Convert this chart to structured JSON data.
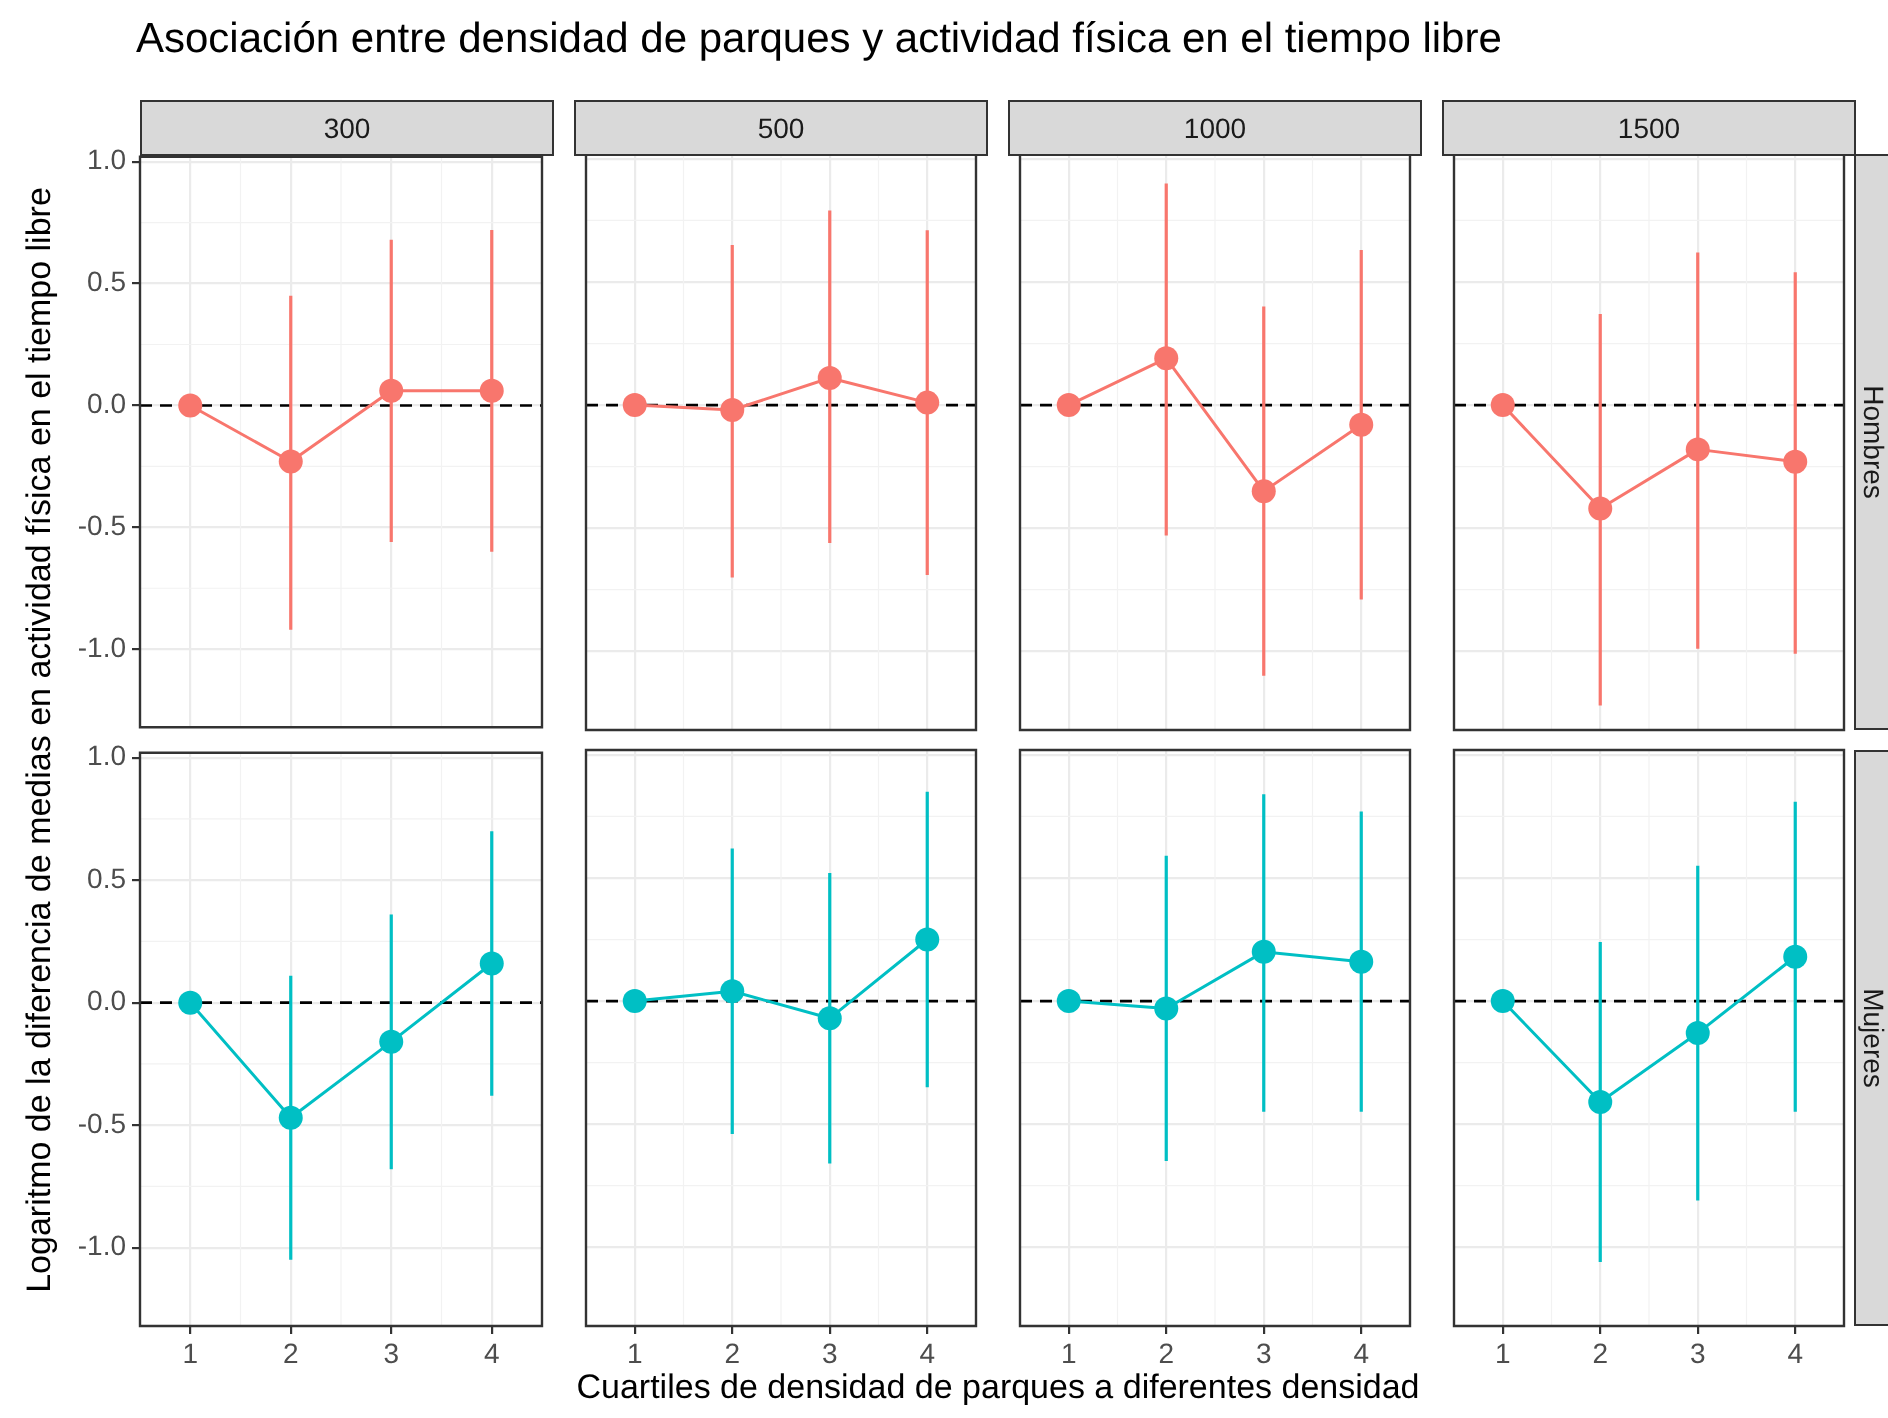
{
  "chart_data": [
    {
      "type": "line",
      "title": "Asociación entre densidad de parques y actividad física en el tiempo libre",
      "xlabel": "Cuartiles de densidad de parques a diferentes densidad",
      "ylabel": "Logaritmo  de la diferencia de medias en actividad física en el tiempo libre",
      "subtitle": "300",
      "categories": [
        "1",
        "2",
        "3",
        "4"
      ],
      "series": [
        {
          "color": "#f8766d",
          "values": [
            0,
            -0.23,
            0.06,
            0.06
          ],
          "errors": [
            null,
            [
              -0.92,
              0.45
            ],
            [
              -0.56,
              0.68
            ],
            [
              -0.6,
              0.72
            ]
          ]
        }
      ],
      "ylim": [
        -1.32,
        1.02
      ],
      "yticks": [
        {
          "value": -1,
          "label": "-1.0"
        },
        {
          "value": -0.5,
          "label": "-0.5"
        },
        {
          "value": 0,
          "label": "0.0"
        },
        {
          "value": 0.5,
          "label": "0.5"
        },
        {
          "value": 1,
          "label": "1.0"
        }
      ],
      "ref_lines": [
        {
          "axis": "y",
          "value": 0,
          "color": "#000000",
          "line_style": "dashed"
        }
      ],
      "grid": true,
      "marker": "circle",
      "tick_labels": "y"
    },
    {
      "type": "line",
      "subtitle": "500",
      "categories": [
        "1",
        "2",
        "3",
        "4"
      ],
      "series": [
        {
          "color": "#f8766d",
          "values": [
            0,
            -0.02,
            0.11,
            0.01
          ],
          "errors": [
            null,
            [
              -0.7,
              0.65
            ],
            [
              -0.56,
              0.79
            ],
            [
              -0.69,
              0.71
            ]
          ]
        }
      ],
      "ylim": [
        -1.32,
        1.02
      ],
      "ref_lines": [
        {
          "axis": "y",
          "value": 0,
          "color": "#000000",
          "line_style": "dashed"
        }
      ],
      "grid": true,
      "marker": "circle",
      "tick_labels": false
    },
    {
      "type": "line",
      "subtitle": "1000",
      "categories": [
        "1",
        "2",
        "3",
        "4"
      ],
      "series": [
        {
          "color": "#f8766d",
          "values": [
            0,
            0.19,
            -0.35,
            -0.08
          ],
          "errors": [
            null,
            [
              -0.53,
              0.9
            ],
            [
              -1.1,
              0.4
            ],
            [
              -0.79,
              0.63
            ]
          ]
        }
      ],
      "ylim": [
        -1.32,
        1.02
      ],
      "ref_lines": [
        {
          "axis": "y",
          "value": 0,
          "color": "#000000",
          "line_style": "dashed"
        }
      ],
      "grid": true,
      "marker": "circle",
      "tick_labels": false
    },
    {
      "type": "line",
      "subtitle": "1500",
      "y2label": "Hombres",
      "categories": [
        "1",
        "2",
        "3",
        "4"
      ],
      "series": [
        {
          "color": "#f8766d",
          "values": [
            0,
            -0.42,
            -0.18,
            -0.23
          ],
          "errors": [
            null,
            [
              -1.22,
              0.37
            ],
            [
              -0.99,
              0.62
            ],
            [
              -1.01,
              0.54
            ]
          ]
        }
      ],
      "ylim": [
        -1.32,
        1.02
      ],
      "ref_lines": [
        {
          "axis": "y",
          "value": 0,
          "color": "#000000",
          "line_style": "dashed"
        }
      ],
      "grid": true,
      "marker": "circle",
      "tick_labels": false
    },
    {
      "type": "line",
      "categories": [
        "1",
        "2",
        "3",
        "4"
      ],
      "series": [
        {
          "color": "#00bfc4",
          "values": [
            0,
            -0.47,
            -0.16,
            0.16
          ],
          "errors": [
            null,
            [
              -1.05,
              0.11
            ],
            [
              -0.68,
              0.36
            ],
            [
              -0.38,
              0.7
            ]
          ]
        }
      ],
      "ylim": [
        -1.32,
        1.02
      ],
      "yticks": [
        {
          "value": -1,
          "label": "-1.0"
        },
        {
          "value": -0.5,
          "label": "-0.5"
        },
        {
          "value": 0,
          "label": "0.0"
        },
        {
          "value": 0.5,
          "label": "0.5"
        },
        {
          "value": 1,
          "label": "1.0"
        }
      ],
      "ref_lines": [
        {
          "axis": "y",
          "value": 0,
          "color": "#000000",
          "line_style": "dashed"
        }
      ],
      "grid": true,
      "marker": "circle"
    },
    {
      "type": "line",
      "categories": [
        "1",
        "2",
        "3",
        "4"
      ],
      "series": [
        {
          "color": "#00bfc4",
          "values": [
            0,
            0.04,
            -0.07,
            0.25
          ],
          "errors": [
            null,
            [
              -0.54,
              0.62
            ],
            [
              -0.66,
              0.52
            ],
            [
              -0.35,
              0.85
            ]
          ]
        }
      ],
      "ylim": [
        -1.32,
        1.02
      ],
      "ref_lines": [
        {
          "axis": "y",
          "value": 0,
          "color": "#000000",
          "line_style": "dashed"
        }
      ],
      "grid": true,
      "marker": "circle",
      "tick_labels": "x"
    },
    {
      "type": "line",
      "categories": [
        "1",
        "2",
        "3",
        "4"
      ],
      "series": [
        {
          "color": "#00bfc4",
          "values": [
            0,
            -0.03,
            0.2,
            0.16
          ],
          "errors": [
            null,
            [
              -0.65,
              0.59
            ],
            [
              -0.45,
              0.84
            ],
            [
              -0.45,
              0.77
            ]
          ]
        }
      ],
      "ylim": [
        -1.32,
        1.02
      ],
      "ref_lines": [
        {
          "axis": "y",
          "value": 0,
          "color": "#000000",
          "line_style": "dashed"
        }
      ],
      "grid": true,
      "marker": "circle",
      "tick_labels": "x"
    },
    {
      "type": "line",
      "y2label": "Mujeres",
      "categories": [
        "1",
        "2",
        "3",
        "4"
      ],
      "series": [
        {
          "color": "#00bfc4",
          "values": [
            0,
            -0.41,
            -0.13,
            0.18
          ],
          "errors": [
            null,
            [
              -1.06,
              0.24
            ],
            [
              -0.81,
              0.55
            ],
            [
              -0.45,
              0.81
            ]
          ]
        }
      ],
      "ylim": [
        -1.32,
        1.02
      ],
      "ref_lines": [
        {
          "axis": "y",
          "value": 0,
          "color": "#000000",
          "line_style": "dashed"
        }
      ],
      "grid": true,
      "marker": "circle",
      "tick_labels": "x"
    }
  ]
}
